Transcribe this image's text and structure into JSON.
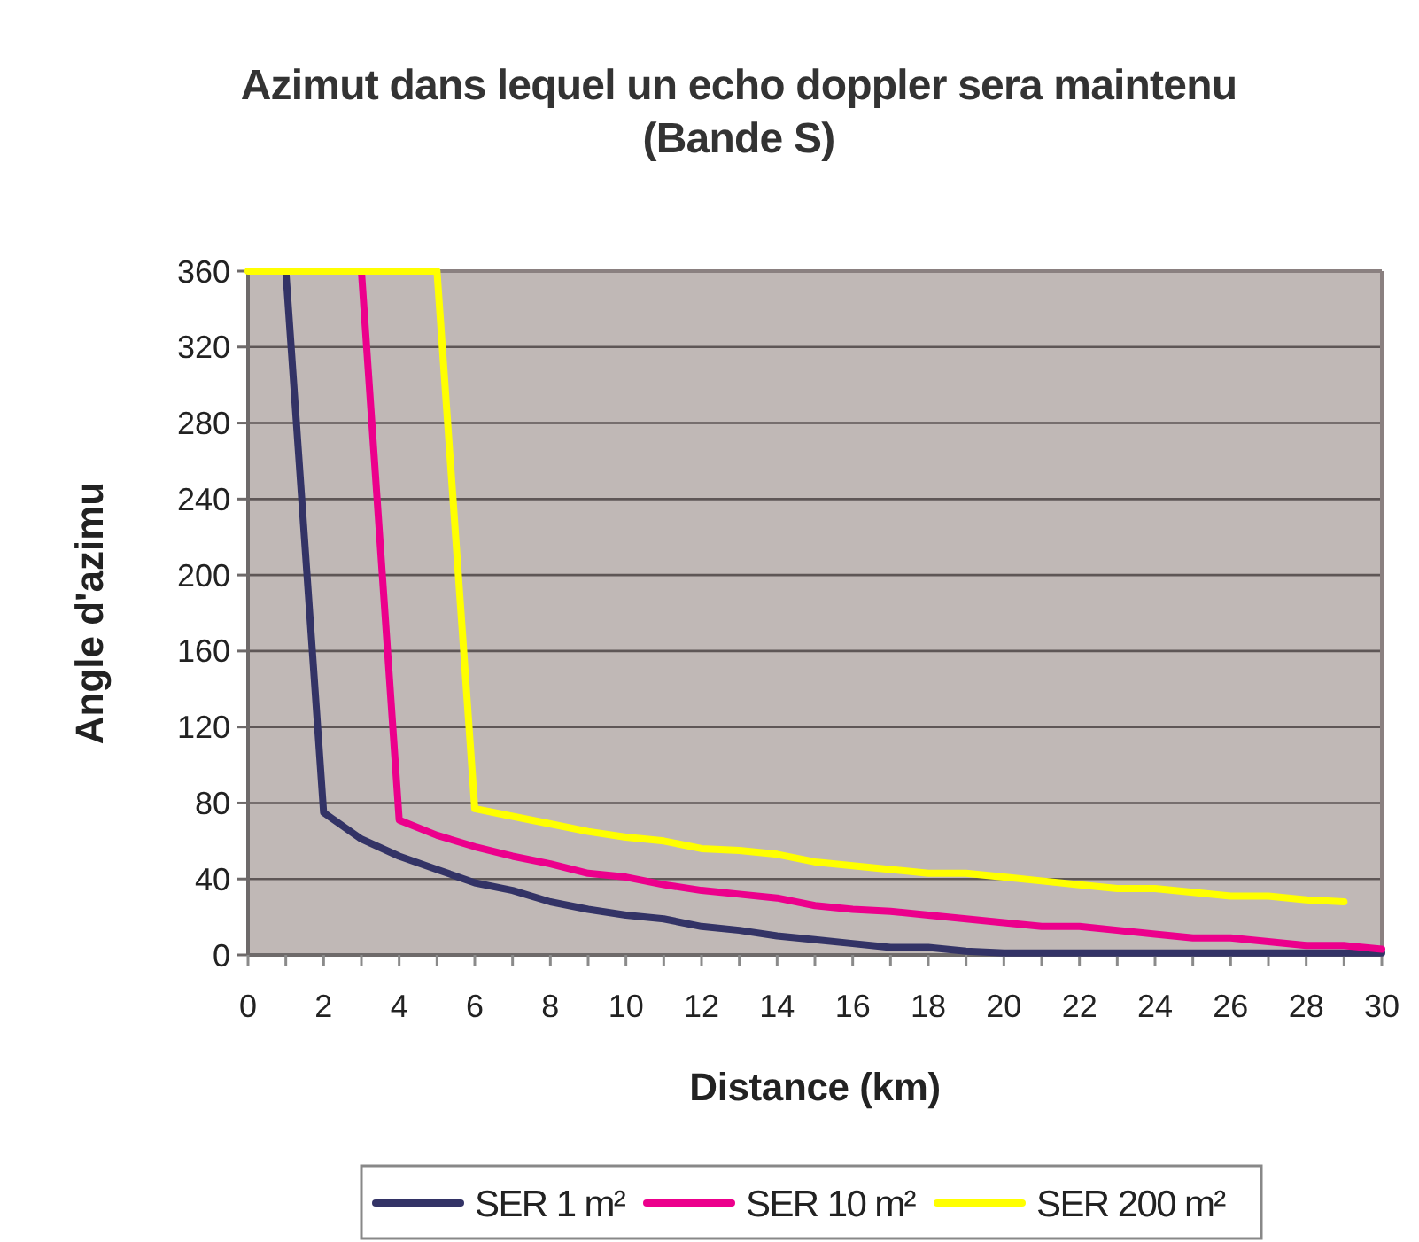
{
  "chart_data": {
    "type": "line",
    "title": "Azimut dans lequel un echo doppler sera maintenu",
    "subtitle": "(Bande S)",
    "xlabel": "Distance (km)",
    "ylabel": "Angle d'azimu",
    "x": [
      0,
      1,
      2,
      3,
      4,
      5,
      6,
      7,
      8,
      9,
      10,
      11,
      12,
      13,
      14,
      15,
      16,
      17,
      18,
      19,
      20,
      21,
      22,
      23,
      24,
      25,
      26,
      27,
      28,
      29,
      30
    ],
    "series": [
      {
        "name": "SER 1 m²",
        "color": "#333366",
        "values": [
          null,
          360,
          75,
          61,
          52,
          45,
          38,
          34,
          28,
          24,
          21,
          19,
          15,
          13,
          10,
          8,
          6,
          4,
          4,
          2,
          1,
          1,
          1,
          1,
          1,
          1,
          1,
          1,
          1,
          1,
          1
        ]
      },
      {
        "name": "SER 10 m²",
        "color": "#ec008c",
        "values": [
          null,
          null,
          null,
          360,
          71,
          63,
          57,
          52,
          48,
          43,
          41,
          37,
          34,
          32,
          30,
          26,
          24,
          23,
          21,
          19,
          17,
          15,
          15,
          13,
          11,
          9,
          9,
          7,
          5,
          5,
          3
        ]
      },
      {
        "name": "SER 200 m²",
        "color": "#ffff00",
        "values": [
          360,
          360,
          360,
          360,
          360,
          360,
          77,
          73,
          69,
          65,
          62,
          60,
          56,
          55,
          53,
          49,
          47,
          45,
          43,
          43,
          41,
          39,
          37,
          35,
          35,
          33,
          31,
          31,
          29,
          28,
          null
        ]
      }
    ],
    "xlim": [
      0,
      30
    ],
    "ylim": [
      0,
      360
    ],
    "xticks": [
      0,
      {
        "value": 1,
        "label": null
      },
      2,
      {
        "value": 3,
        "label": null
      },
      4,
      {
        "value": 5,
        "label": null
      },
      6,
      {
        "value": 7,
        "label": null
      },
      8,
      {
        "value": 9,
        "label": null
      },
      10,
      {
        "value": 11,
        "label": null
      },
      12,
      {
        "value": 13,
        "label": null
      },
      14,
      {
        "value": 15,
        "label": null
      },
      16,
      {
        "value": 17,
        "label": null
      },
      18,
      {
        "value": 19,
        "label": null
      },
      20,
      {
        "value": 21,
        "label": null
      },
      22,
      {
        "value": 23,
        "label": null
      },
      24,
      {
        "value": 25,
        "label": null
      },
      26,
      {
        "value": 27,
        "label": null
      },
      28,
      {
        "value": 29,
        "label": null
      },
      30
    ],
    "yticks": [
      0,
      40,
      80,
      120,
      160,
      200,
      240,
      280,
      320,
      360
    ],
    "grid": "y",
    "legend": "bottom",
    "line_style": "solid"
  }
}
